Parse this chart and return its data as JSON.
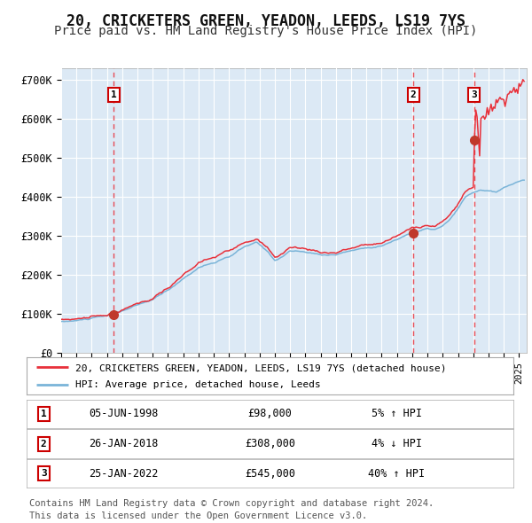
{
  "title": "20, CRICKETERS GREEN, YEADON, LEEDS, LS19 7YS",
  "subtitle": "Price paid vs. HM Land Registry's House Price Index (HPI)",
  "title_fontsize": 12,
  "subtitle_fontsize": 10,
  "plot_bg_color": "#dce9f5",
  "fig_bg_color": "#ffffff",
  "hpi_color": "#7ab4d8",
  "price_color": "#e8303a",
  "sale_marker_color": "#c0392b",
  "vline_color": "#e8303a",
  "grid_color": "#ffffff",
  "ylim": [
    0,
    730000
  ],
  "yticks": [
    0,
    100000,
    200000,
    300000,
    400000,
    500000,
    600000,
    700000
  ],
  "ytick_labels": [
    "£0",
    "£100K",
    "£200K",
    "£300K",
    "£400K",
    "£500K",
    "£600K",
    "£700K"
  ],
  "sales": [
    {
      "num": 1,
      "date_float": 1998.44,
      "price": 98000,
      "label": "05-JUN-1998",
      "amount": "£98,000",
      "hpi_rel": "5% ↑ HPI"
    },
    {
      "num": 2,
      "date_float": 2018.07,
      "price": 308000,
      "label": "26-JAN-2018",
      "amount": "£308,000",
      "hpi_rel": "4% ↓ HPI"
    },
    {
      "num": 3,
      "date_float": 2022.07,
      "price": 545000,
      "label": "25-JAN-2022",
      "amount": "£545,000",
      "hpi_rel": "40% ↑ HPI"
    }
  ],
  "legend_line1": "20, CRICKETERS GREEN, YEADON, LEEDS, LS19 7YS (detached house)",
  "legend_line2": "HPI: Average price, detached house, Leeds",
  "footer": "Contains HM Land Registry data © Crown copyright and database right 2024.\nThis data is licensed under the Open Government Licence v3.0.",
  "footer_fontsize": 7.5,
  "hpi_key_points_x": [
    1995.0,
    1996.0,
    1997.0,
    1998.0,
    1999.0,
    2000.0,
    2001.0,
    2002.0,
    2003.0,
    2004.0,
    2005.0,
    2006.0,
    2007.0,
    2007.8,
    2008.5,
    2009.0,
    2009.5,
    2010.0,
    2011.0,
    2012.0,
    2013.0,
    2014.0,
    2015.0,
    2016.0,
    2017.0,
    2018.0,
    2018.5,
    2019.0,
    2019.5,
    2020.0,
    2020.5,
    2021.0,
    2021.5,
    2022.0,
    2022.5,
    2023.0,
    2023.5,
    2024.0,
    2024.5,
    2025.3
  ],
  "hpi_key_points_y": [
    80000,
    82000,
    88000,
    92000,
    105000,
    118000,
    132000,
    155000,
    185000,
    215000,
    228000,
    240000,
    265000,
    275000,
    252000,
    230000,
    240000,
    255000,
    250000,
    243000,
    245000,
    255000,
    263000,
    270000,
    285000,
    305000,
    308000,
    312000,
    310000,
    318000,
    335000,
    360000,
    390000,
    400000,
    408000,
    405000,
    400000,
    410000,
    420000,
    430000
  ]
}
